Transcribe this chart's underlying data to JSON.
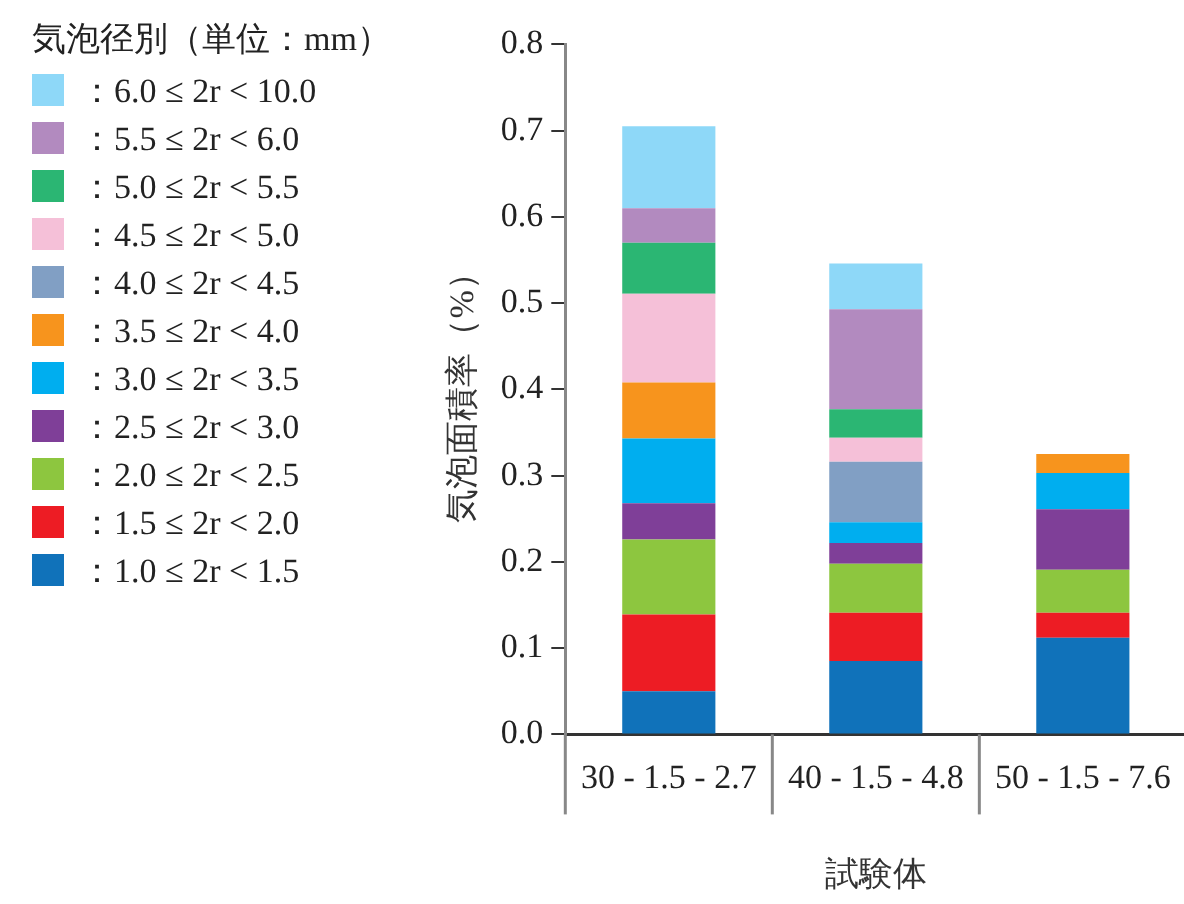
{
  "chart_data": {
    "type": "bar",
    "stacked": true,
    "legend": "top left",
    "legend_title": "気泡径別（単位：mm）",
    "xlabel": "試験体",
    "ylabel": "気泡面積率（%）",
    "categories": [
      "30 - 1.5 - 2.7",
      "40 - 1.5 - 4.8",
      "50 - 1.5 - 7.6"
    ],
    "ylim": [
      0,
      0.8
    ],
    "yticks": [
      {
        "value": 0,
        "label": "0.0"
      },
      0.1,
      0.2,
      0.3,
      0.4,
      0.5,
      0.6,
      0.7,
      0.8
    ],
    "grid": false,
    "series": [
      {
        "name": "：1.0 ≤ 2r < 1.5",
        "color": "#1072ba",
        "values": [
          0.05,
          0.085,
          0.112
        ]
      },
      {
        "name": "：1.5 ≤ 2r < 2.0",
        "color": "#ed1c24",
        "values": [
          0.089,
          0.056,
          0.029
        ]
      },
      {
        "name": "：2.0 ≤ 2r < 2.5",
        "color": "#8dc63f",
        "values": [
          0.087,
          0.057,
          0.05
        ]
      },
      {
        "name": "：2.5 ≤ 2r < 3.0",
        "color": "#7f3f98",
        "values": [
          0.042,
          0.024,
          0.07
        ]
      },
      {
        "name": "：3.0 ≤ 2r < 3.5",
        "color": "#00aeef",
        "values": [
          0.075,
          0.024,
          0.042
        ]
      },
      {
        "name": "：3.5 ≤ 2r < 4.0",
        "color": "#f7941d",
        "values": [
          0.065,
          0,
          0.022
        ]
      },
      {
        "name": "：4.0 ≤ 2r < 4.5",
        "color": "#819fc4",
        "values": [
          0,
          0.07,
          0
        ]
      },
      {
        "name": "：4.5 ≤ 2r < 5.0",
        "color": "#f5c0d8",
        "values": [
          0.103,
          0.028,
          0
        ]
      },
      {
        "name": "：5.0 ≤ 2r < 5.5",
        "color": "#2bb673",
        "values": [
          0.059,
          0.033,
          0
        ]
      },
      {
        "name": "：5.5 ≤ 2r < 6.0",
        "color": "#b28abf",
        "values": [
          0.04,
          0.116,
          0
        ]
      },
      {
        "name": "：6.0 ≤ 2r < 10.0",
        "color": "#8ed8f8",
        "values": [
          0.095,
          0.053,
          0
        ]
      }
    ]
  }
}
